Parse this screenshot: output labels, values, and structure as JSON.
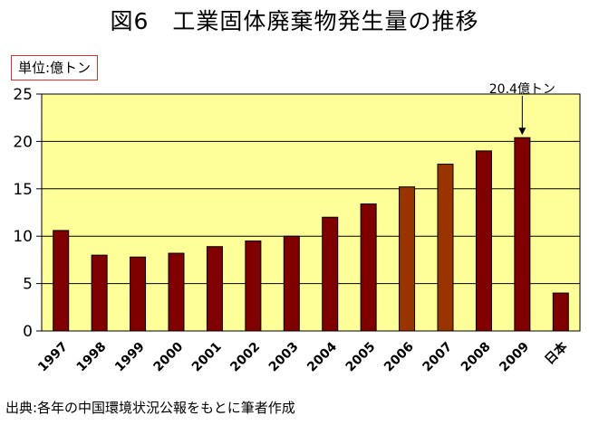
{
  "title": "図6　工業固体廃棄物発生量の推移",
  "unit": "単位:億トン",
  "source": "出典:各年の中国環境状況公報をもとに筆者作成",
  "colors": {
    "plot_bg": "#ffff99",
    "bar": "#800000",
    "bar_highlight": "#993300",
    "grid": "#000000"
  },
  "chart_data": {
    "type": "bar",
    "title": "図6　工業固体廃棄物発生量の推移",
    "xlabel": "",
    "ylabel": "単位:億トン",
    "ylim": [
      0,
      25
    ],
    "yticks": [
      0,
      5,
      10,
      15,
      20,
      25
    ],
    "grid": true,
    "categories": [
      "1997",
      "1998",
      "1999",
      "2000",
      "2001",
      "2002",
      "2003",
      "2004",
      "2005",
      "2006",
      "2007",
      "2008",
      "2009",
      "日本"
    ],
    "values": [
      10.6,
      8.0,
      7.8,
      8.2,
      8.9,
      9.5,
      10.0,
      12.0,
      13.4,
      15.2,
      17.6,
      19.0,
      20.4,
      4.0
    ],
    "highlighted_categories": [
      "2006",
      "2007"
    ],
    "annotations": [
      {
        "text": "20.4億トン",
        "category": "2009",
        "value": 20.4
      }
    ]
  }
}
